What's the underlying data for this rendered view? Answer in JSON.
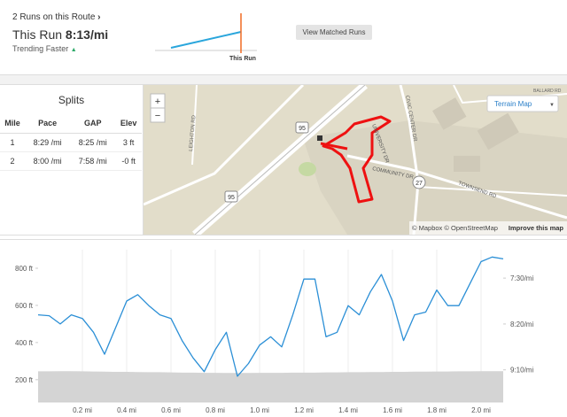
{
  "header": {
    "routes_link": "2 Runs on this Route",
    "this_run_label": "This Run",
    "this_run_pace": "8:13/mi",
    "trend": "Trending Faster",
    "mini_chart_label": "This Run",
    "button": "View Matched Runs"
  },
  "splits": {
    "title": "Splits",
    "columns": [
      "Mile",
      "Pace",
      "GAP",
      "Elev"
    ],
    "rows": [
      [
        "1",
        "8:29 /mi",
        "8:25 /mi",
        "3 ft"
      ],
      [
        "2",
        "8:00 /mi",
        "7:58 /mi",
        "-0 ft"
      ]
    ]
  },
  "map": {
    "zoom_in": "+",
    "zoom_out": "−",
    "terrain_button": "Terrain Map",
    "roads": [
      "LEIGHTON RD",
      "CIVIC CENTER DR",
      "COMMUNITY DR",
      "TOWNSEND RD",
      "UNIVERSITY DR",
      "BALLARD RD"
    ],
    "shields": [
      "95",
      "95",
      "27"
    ],
    "attribution": "© Mapbox © OpenStreetMap",
    "improve": "Improve this map"
  },
  "chart_data": {
    "type": "line",
    "x": [
      0,
      0.05,
      0.1,
      0.15,
      0.2,
      0.25,
      0.3,
      0.35,
      0.4,
      0.45,
      0.5,
      0.55,
      0.6,
      0.65,
      0.7,
      0.75,
      0.8,
      0.85,
      0.9,
      0.95,
      1.0,
      1.05,
      1.1,
      1.15,
      1.2,
      1.25,
      1.3,
      1.35,
      1.4,
      1.45,
      1.5,
      1.55,
      1.6,
      1.65,
      1.7,
      1.75,
      1.8,
      1.85,
      1.9,
      1.95,
      2.0,
      2.05,
      2.1
    ],
    "series": [
      {
        "color": "#d4d4d4",
        "area": true,
        "axis": "y",
        "values": [
          245,
          245,
          246,
          246,
          245,
          244,
          243,
          242,
          242,
          241,
          240,
          240,
          239,
          238,
          238,
          237,
          237,
          236,
          236,
          236,
          237,
          237,
          237,
          238,
          238,
          238,
          239,
          239,
          240,
          240,
          241,
          241,
          242,
          242,
          243,
          243,
          244,
          244,
          245,
          245,
          246,
          246,
          246
        ]
      },
      {
        "color": "#2b8fd6",
        "area": false,
        "axis": "y2",
        "values": [
          490,
          491,
          500,
          490,
          494,
          509,
          533,
          504,
          475,
          468,
          480,
          490,
          494,
          518,
          537,
          552,
          528,
          509,
          557,
          543,
          523,
          514,
          525,
          490,
          451,
          451,
          514,
          509,
          480,
          490,
          465,
          446,
          475,
          518,
          490,
          487,
          463,
          480,
          480,
          456,
          432,
          427,
          429
        ]
      }
    ],
    "xlim": [
      0,
      2.1
    ],
    "xticks": [
      {
        "value": 0.2,
        "label": "0.2 mi"
      },
      {
        "value": 0.4,
        "label": "0.4 mi"
      },
      {
        "value": 0.6,
        "label": "0.6 mi"
      },
      {
        "value": 0.8,
        "label": "0.8 mi"
      },
      {
        "value": 1.0,
        "label": "1.0 mi"
      },
      {
        "value": 1.2,
        "label": "1.2 mi"
      },
      {
        "value": 1.4,
        "label": "1.4 mi"
      },
      {
        "value": 1.6,
        "label": "1.6 mi"
      },
      {
        "value": 1.8,
        "label": "1.8 mi"
      },
      {
        "value": 2.0,
        "label": "2.0 mi"
      }
    ],
    "ylim": [
      80,
      900
    ],
    "yticks": [
      {
        "value": 200,
        "label": "200 ft"
      },
      {
        "value": 400,
        "label": "400 ft"
      },
      {
        "value": 600,
        "label": "600 ft"
      },
      {
        "value": 800,
        "label": "800 ft"
      }
    ],
    "y2lim": [
      585,
      419
    ],
    "y2ticks": [
      {
        "value": 450,
        "label": "7:30/mi"
      },
      {
        "value": 500,
        "label": "8:20/mi"
      },
      {
        "value": 550,
        "label": "9:10/mi"
      }
    ],
    "grid": true
  }
}
